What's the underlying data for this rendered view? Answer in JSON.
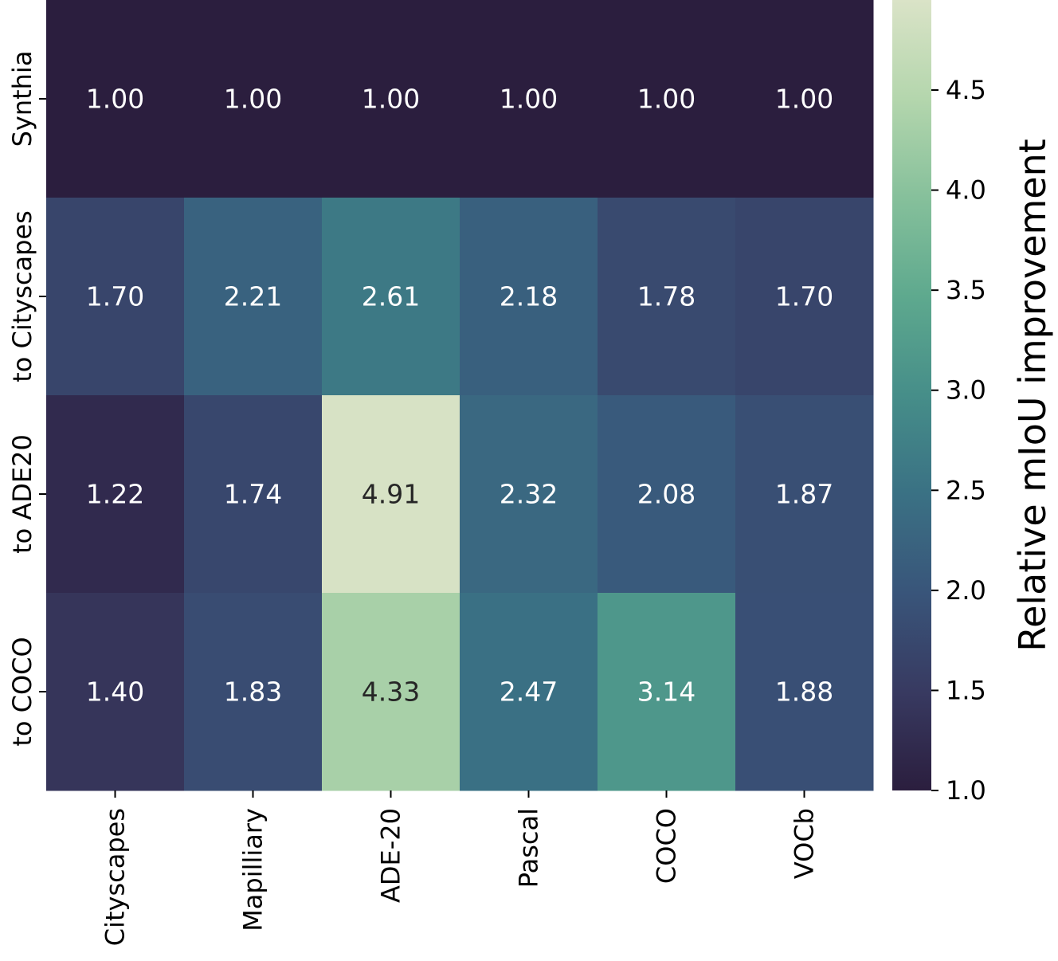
{
  "chart_data": {
    "type": "heatmap",
    "title": "",
    "xlabel": "",
    "ylabel": "",
    "x_categories": [
      "Cityscapes",
      "Mapilliary",
      "ADE-20",
      "Pascal",
      "COCO",
      "VOCb"
    ],
    "y_categories": [
      "Synthia",
      "to Cityscapes",
      "to ADE20",
      "to COCO"
    ],
    "values": [
      [
        1.0,
        1.0,
        1.0,
        1.0,
        1.0,
        1.0
      ],
      [
        1.7,
        2.21,
        2.61,
        2.18,
        1.78,
        1.7
      ],
      [
        1.22,
        1.74,
        4.91,
        2.32,
        2.08,
        1.87
      ],
      [
        1.4,
        1.83,
        4.33,
        2.47,
        3.14,
        1.88
      ]
    ],
    "value_format": "2 decimals",
    "colorbar": {
      "label": "Relative mIoU improvement",
      "range": [
        1.0,
        4.95
      ],
      "ticks": [
        1.0,
        1.5,
        2.0,
        2.5,
        3.0,
        3.5,
        4.0,
        4.5
      ],
      "tick_labels": [
        "1.0",
        "1.5",
        "2.0",
        "2.5",
        "3.0",
        "3.5",
        "4.0",
        "4.5"
      ]
    },
    "colormap": [
      "#2b1e3e",
      "#383a61",
      "#39557a",
      "#3a7184",
      "#468e89",
      "#5ea98e",
      "#86c09b",
      "#b4d6ad",
      "#dae3c7"
    ],
    "text_colors": {
      "dark_cells": "#ffffff",
      "light_cells": "#262626"
    }
  }
}
